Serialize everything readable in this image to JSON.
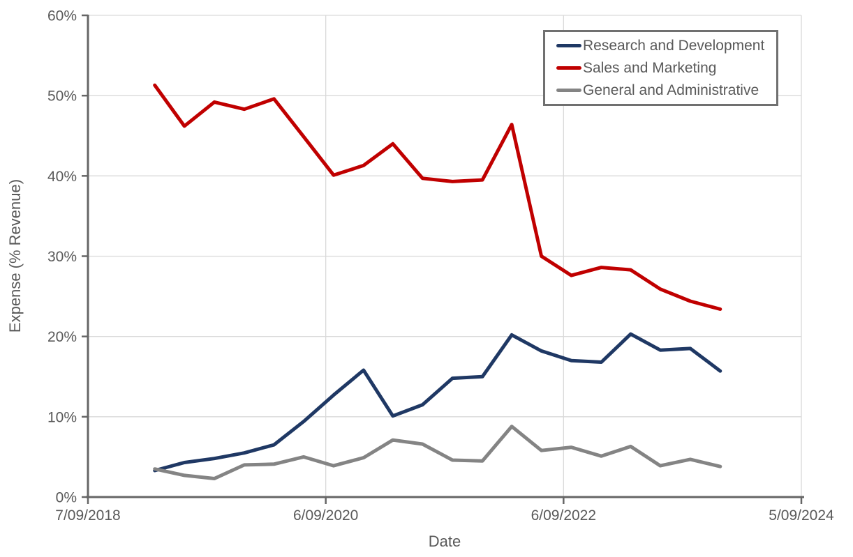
{
  "colors": {
    "background": "#ffffff",
    "axis_line": "#666666",
    "gridline": "#d9d9d9",
    "tick_text": "#595959",
    "legend_border": "#707070",
    "rnd_blue": "#1F3864",
    "sm_red": "#C00000",
    "ga_gray": "#848484"
  },
  "chart_data": {
    "type": "line",
    "title": "",
    "xlabel": "Date",
    "ylabel": "Expense (% Revenue)",
    "grid": true,
    "legend_position": "top-right",
    "x_axis": {
      "kind": "date",
      "range": [
        "2018-09-07",
        "2024-09-05"
      ],
      "ticks": [
        {
          "date": "2018-09-07",
          "label": "7/09/2018"
        },
        {
          "date": "2020-09-06",
          "label": "6/09/2020"
        },
        {
          "date": "2022-09-06",
          "label": "6/09/2022"
        },
        {
          "date": "2024-09-05",
          "label": "5/09/2024"
        }
      ]
    },
    "y_axis": {
      "range": [
        0,
        60
      ],
      "tick_step": 10,
      "tick_labels": [
        "0%",
        "10%",
        "20%",
        "30%",
        "40%",
        "50%",
        "60%"
      ]
    },
    "dates": [
      "2019-03-31",
      "2019-06-30",
      "2019-09-30",
      "2019-12-31",
      "2020-03-31",
      "2020-06-30",
      "2020-09-30",
      "2020-12-31",
      "2021-03-31",
      "2021-06-30",
      "2021-09-30",
      "2021-12-31",
      "2022-03-31",
      "2022-06-30",
      "2022-09-30",
      "2022-12-31",
      "2023-03-31",
      "2023-06-30",
      "2023-09-30",
      "2023-12-31"
    ],
    "series": [
      {
        "name": "Research and Development",
        "color": "#1F3864",
        "values": [
          3.3,
          4.3,
          4.8,
          5.5,
          6.5,
          9.4,
          12.7,
          15.8,
          10.1,
          11.5,
          14.8,
          15.0,
          20.2,
          18.2,
          17.0,
          16.8,
          20.3,
          18.3,
          18.5,
          15.7
        ]
      },
      {
        "name": "Sales and Marketing",
        "color": "#C00000",
        "values": [
          51.3,
          46.2,
          49.2,
          48.3,
          49.6,
          44.9,
          40.1,
          41.3,
          44.0,
          39.7,
          39.3,
          39.5,
          46.4,
          30.0,
          27.6,
          28.6,
          28.3,
          25.9,
          24.4,
          23.4
        ]
      },
      {
        "name": "General and Administrative",
        "color": "#848484",
        "values": [
          3.5,
          2.7,
          2.3,
          4.0,
          4.1,
          5.0,
          3.9,
          4.9,
          7.1,
          6.6,
          4.6,
          4.5,
          8.8,
          5.8,
          6.2,
          5.1,
          6.3,
          3.9,
          4.7,
          3.8
        ]
      }
    ]
  }
}
